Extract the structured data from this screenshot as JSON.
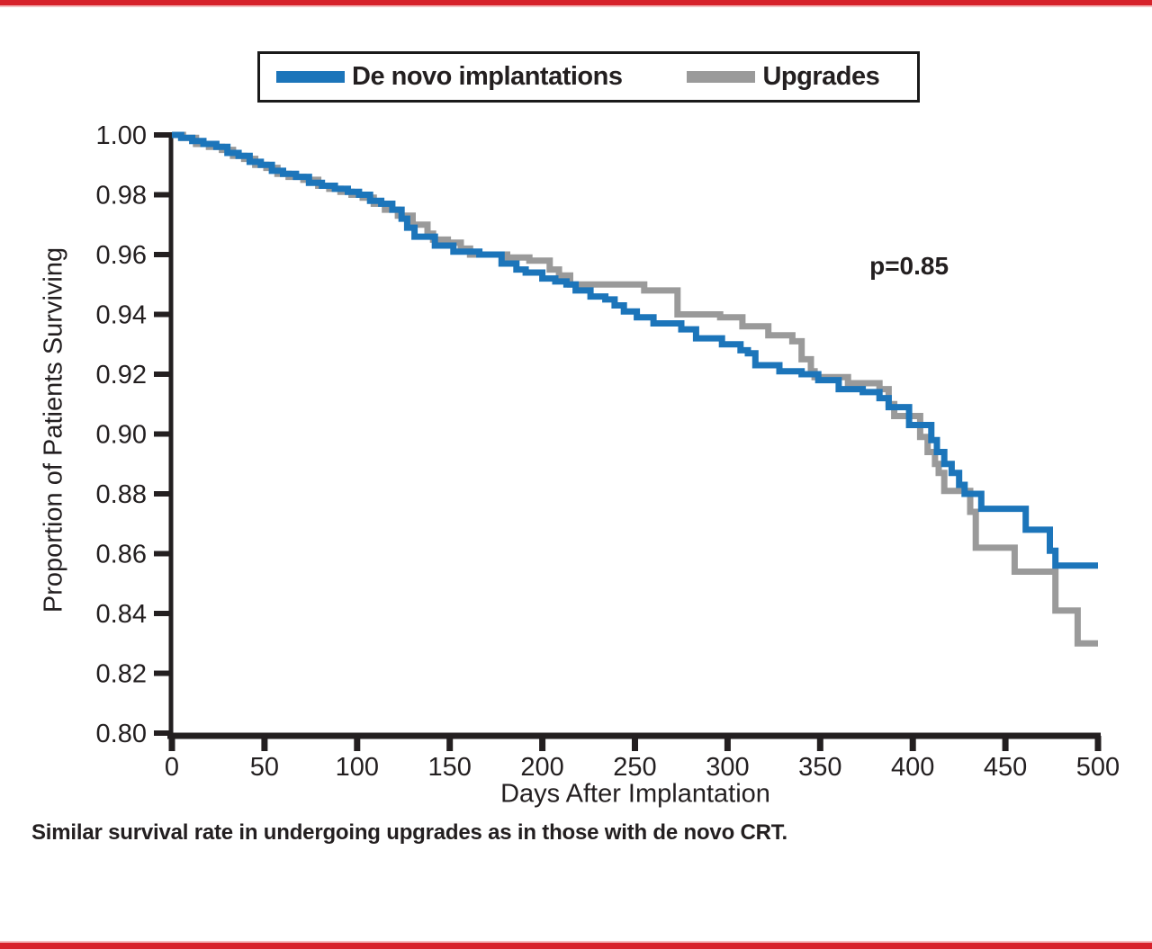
{
  "colors": {
    "accent_red_bar": "#d7222b",
    "axis_black": "#231f20",
    "de_novo_blue": "#1c75ba",
    "upgrades_gray": "#9a9a9a"
  },
  "caption": "Similar survival rate in undergoing upgrades as in those with de novo CRT.",
  "chart_data": {
    "type": "line",
    "subtype": "kaplan-meier-step",
    "title": "",
    "xlabel": "Days After Implantation",
    "ylabel": "Proportion of Patients Surviving",
    "xlim": [
      0,
      500
    ],
    "ylim": [
      0.8,
      1.0
    ],
    "x_ticks": [
      0,
      50,
      100,
      150,
      200,
      250,
      300,
      350,
      400,
      450,
      500
    ],
    "y_ticks": [
      "1.00",
      "0.98",
      "0.96",
      "0.94",
      "0.92",
      "0.90",
      "0.88",
      "0.86",
      "0.84",
      "0.82",
      "0.80"
    ],
    "grid": false,
    "legend_position": "top",
    "annotations": [
      {
        "text": "p=0.85",
        "x": 398,
        "y": 0.956
      }
    ],
    "series": [
      {
        "name": "Upgrades",
        "color": "#9a9a9a",
        "steps": [
          [
            0,
            1.0
          ],
          [
            6,
            0.999
          ],
          [
            13,
            0.997
          ],
          [
            20,
            0.996
          ],
          [
            27,
            0.995
          ],
          [
            33,
            0.993
          ],
          [
            39,
            0.992
          ],
          [
            45,
            0.99
          ],
          [
            51,
            0.989
          ],
          [
            57,
            0.987
          ],
          [
            63,
            0.986
          ],
          [
            71,
            0.985
          ],
          [
            79,
            0.983
          ],
          [
            85,
            0.982
          ],
          [
            91,
            0.981
          ],
          [
            97,
            0.98
          ],
          [
            103,
            0.979
          ],
          [
            109,
            0.977
          ],
          [
            115,
            0.975
          ],
          [
            122,
            0.973
          ],
          [
            130,
            0.97
          ],
          [
            138,
            0.967
          ],
          [
            141,
            0.965
          ],
          [
            149,
            0.964
          ],
          [
            156,
            0.962
          ],
          [
            161,
            0.96
          ],
          [
            181,
            0.959
          ],
          [
            193,
            0.958
          ],
          [
            204,
            0.955
          ],
          [
            209,
            0.953
          ],
          [
            215,
            0.95
          ],
          [
            255,
            0.948
          ],
          [
            273,
            0.94
          ],
          [
            296,
            0.939
          ],
          [
            308,
            0.936
          ],
          [
            322,
            0.933
          ],
          [
            335,
            0.931
          ],
          [
            340,
            0.925
          ],
          [
            345,
            0.921
          ],
          [
            347,
            0.919
          ],
          [
            365,
            0.917
          ],
          [
            382,
            0.915
          ],
          [
            387,
            0.91
          ],
          [
            390,
            0.906
          ],
          [
            404,
            0.899
          ],
          [
            408,
            0.894
          ],
          [
            412,
            0.89
          ],
          [
            414,
            0.887
          ],
          [
            417,
            0.881
          ],
          [
            431,
            0.874
          ],
          [
            434,
            0.862
          ],
          [
            455,
            0.854
          ],
          [
            477,
            0.841
          ],
          [
            489,
            0.83
          ],
          [
            500,
            0.83
          ]
        ]
      },
      {
        "name": "De novo implantations",
        "color": "#1c75ba",
        "steps": [
          [
            0,
            1.0
          ],
          [
            5,
            0.999
          ],
          [
            11,
            0.998
          ],
          [
            17,
            0.997
          ],
          [
            24,
            0.996
          ],
          [
            30,
            0.994
          ],
          [
            36,
            0.993
          ],
          [
            42,
            0.991
          ],
          [
            48,
            0.99
          ],
          [
            54,
            0.988
          ],
          [
            60,
            0.987
          ],
          [
            67,
            0.986
          ],
          [
            74,
            0.984
          ],
          [
            81,
            0.983
          ],
          [
            88,
            0.982
          ],
          [
            95,
            0.981
          ],
          [
            101,
            0.98
          ],
          [
            107,
            0.978
          ],
          [
            113,
            0.977
          ],
          [
            119,
            0.975
          ],
          [
            124,
            0.972
          ],
          [
            127,
            0.969
          ],
          [
            131,
            0.966
          ],
          [
            142,
            0.963
          ],
          [
            152,
            0.961
          ],
          [
            166,
            0.96
          ],
          [
            178,
            0.957
          ],
          [
            186,
            0.955
          ],
          [
            191,
            0.954
          ],
          [
            200,
            0.952
          ],
          [
            207,
            0.951
          ],
          [
            213,
            0.95
          ],
          [
            218,
            0.948
          ],
          [
            226,
            0.946
          ],
          [
            234,
            0.945
          ],
          [
            239,
            0.943
          ],
          [
            244,
            0.941
          ],
          [
            251,
            0.939
          ],
          [
            260,
            0.937
          ],
          [
            275,
            0.935
          ],
          [
            283,
            0.932
          ],
          [
            297,
            0.93
          ],
          [
            307,
            0.928
          ],
          [
            311,
            0.927
          ],
          [
            315,
            0.923
          ],
          [
            328,
            0.921
          ],
          [
            340,
            0.92
          ],
          [
            349,
            0.918
          ],
          [
            360,
            0.915
          ],
          [
            373,
            0.914
          ],
          [
            382,
            0.912
          ],
          [
            387,
            0.909
          ],
          [
            398,
            0.903
          ],
          [
            410,
            0.898
          ],
          [
            413,
            0.894
          ],
          [
            417,
            0.89
          ],
          [
            421,
            0.887
          ],
          [
            425,
            0.883
          ],
          [
            428,
            0.88
          ],
          [
            437,
            0.875
          ],
          [
            461,
            0.868
          ],
          [
            474,
            0.861
          ],
          [
            477,
            0.856
          ],
          [
            500,
            0.856
          ]
        ]
      }
    ]
  }
}
